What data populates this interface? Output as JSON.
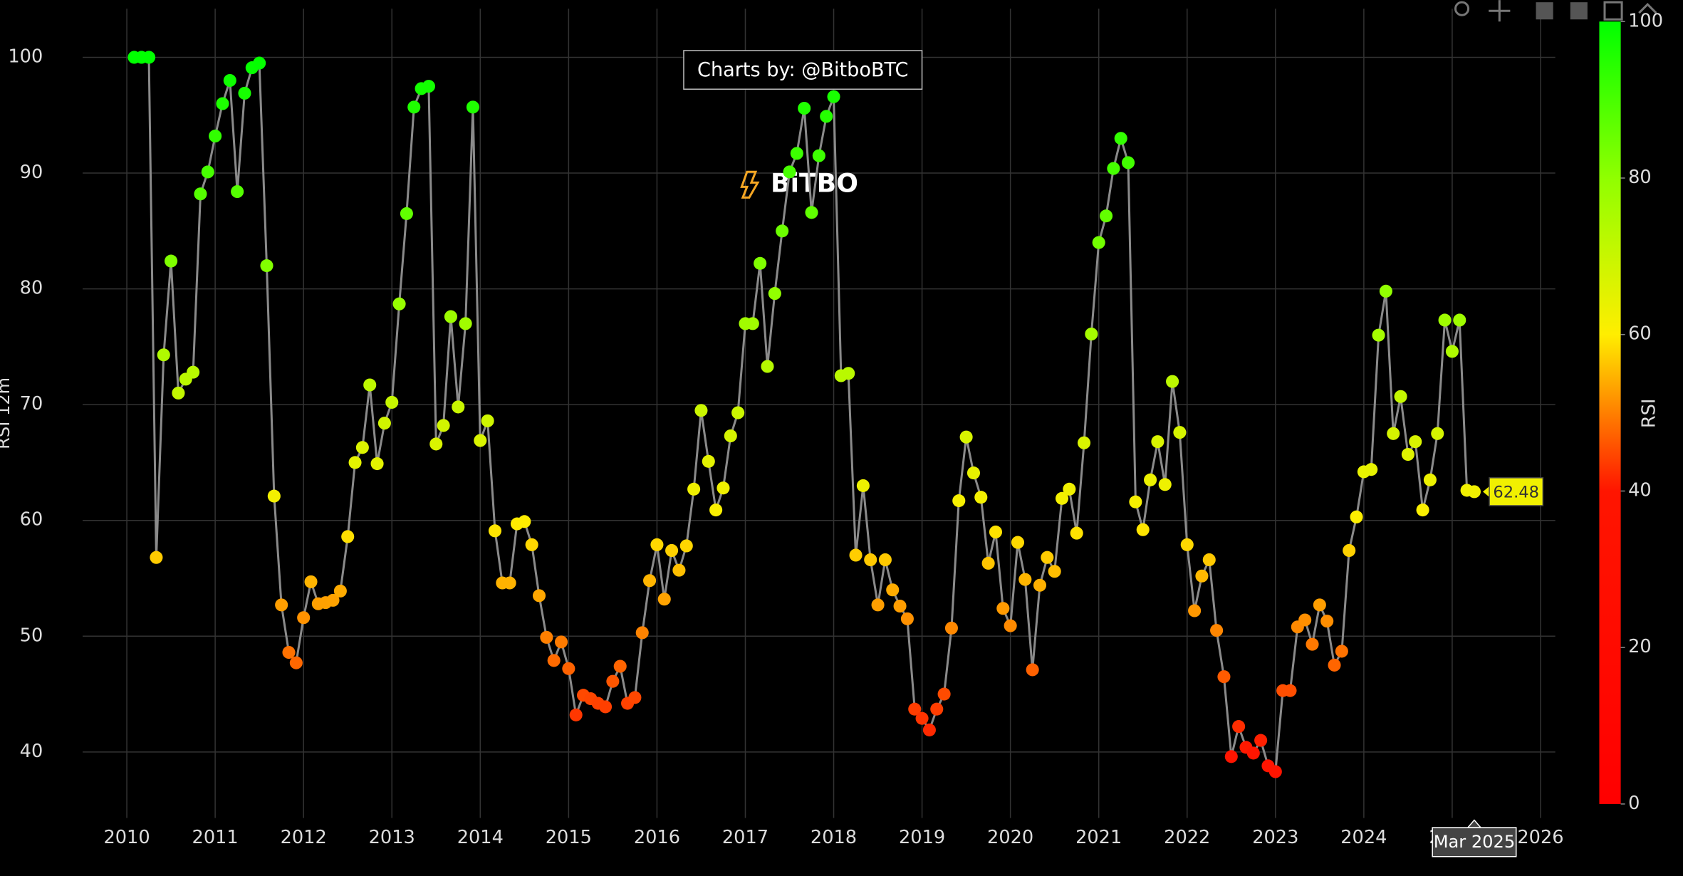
{
  "chart_data": {
    "type": "line",
    "y_label": "RSI 12m",
    "annotation": "Charts by: @BitboBTC",
    "watermark": "BiTBO",
    "x": [
      "2010-01",
      "2010-02",
      "2010-03",
      "2010-04",
      "2010-05",
      "2010-06",
      "2010-07",
      "2010-08",
      "2010-09",
      "2010-10",
      "2010-11",
      "2010-12",
      "2011-01",
      "2011-02",
      "2011-03",
      "2011-04",
      "2011-05",
      "2011-06",
      "2011-07",
      "2011-08",
      "2011-09",
      "2011-10",
      "2011-11",
      "2011-12",
      "2012-01",
      "2012-02",
      "2012-03",
      "2012-04",
      "2012-05",
      "2012-06",
      "2012-07",
      "2012-08",
      "2012-09",
      "2012-10",
      "2012-11",
      "2012-12",
      "2013-01",
      "2013-02",
      "2013-03",
      "2013-04",
      "2013-05",
      "2013-06",
      "2013-07",
      "2013-08",
      "2013-09",
      "2013-10",
      "2013-11",
      "2013-12",
      "2014-01",
      "2014-02",
      "2014-03",
      "2014-04",
      "2014-05",
      "2014-06",
      "2014-07",
      "2014-08",
      "2014-09",
      "2014-10",
      "2014-11",
      "2014-12",
      "2015-01",
      "2015-02",
      "2015-03",
      "2015-04",
      "2015-05",
      "2015-06",
      "2015-07",
      "2015-08",
      "2015-09",
      "2015-10",
      "2015-11",
      "2015-12",
      "2016-01",
      "2016-02",
      "2016-03",
      "2016-04",
      "2016-05",
      "2016-06",
      "2016-07",
      "2016-08",
      "2016-09",
      "2016-10",
      "2016-11",
      "2016-12",
      "2017-01",
      "2017-02",
      "2017-03",
      "2017-04",
      "2017-05",
      "2017-06",
      "2017-07",
      "2017-08",
      "2017-09",
      "2017-10",
      "2017-11",
      "2017-12",
      "2018-01",
      "2018-02",
      "2018-03",
      "2018-04",
      "2018-05",
      "2018-06",
      "2018-07",
      "2018-08",
      "2018-09",
      "2018-10",
      "2018-11",
      "2018-12",
      "2019-01",
      "2019-02",
      "2019-03",
      "2019-04",
      "2019-05",
      "2019-06",
      "2019-07",
      "2019-08",
      "2019-09",
      "2019-10",
      "2019-11",
      "2019-12",
      "2020-01",
      "2020-02",
      "2020-03",
      "2020-04",
      "2020-05",
      "2020-06",
      "2020-07",
      "2020-08",
      "2020-09",
      "2020-10",
      "2020-11",
      "2020-12",
      "2021-01",
      "2021-02",
      "2021-03",
      "2021-04",
      "2021-05",
      "2021-06",
      "2021-07",
      "2021-08",
      "2021-09",
      "2021-10",
      "2021-11",
      "2021-12",
      "2022-01",
      "2022-02",
      "2022-03",
      "2022-04",
      "2022-05",
      "2022-06",
      "2022-07",
      "2022-08",
      "2022-09",
      "2022-10",
      "2022-11",
      "2022-12",
      "2023-01",
      "2023-02",
      "2023-03",
      "2023-04",
      "2023-05",
      "2023-06",
      "2023-07",
      "2023-08",
      "2023-09",
      "2023-10",
      "2023-11",
      "2023-12",
      "2024-01",
      "2024-02",
      "2024-03",
      "2024-04",
      "2024-05",
      "2024-06",
      "2024-07",
      "2024-08",
      "2024-09",
      "2024-10",
      "2024-11",
      "2024-12",
      "2025-01",
      "2025-02",
      "2025-03"
    ],
    "values": [
      100,
      100,
      100,
      56.8,
      74.3,
      82.4,
      71.0,
      72.2,
      72.8,
      88.2,
      90.1,
      93.2,
      96.0,
      98.0,
      88.4,
      96.9,
      99.1,
      99.5,
      82.0,
      62.1,
      52.7,
      48.6,
      47.7,
      51.6,
      54.7,
      52.8,
      52.9,
      53.1,
      53.9,
      58.6,
      65.0,
      66.3,
      71.7,
      64.9,
      68.4,
      70.2,
      78.7,
      86.5,
      95.7,
      97.3,
      97.5,
      66.6,
      68.2,
      77.6,
      69.8,
      77.0,
      95.7,
      66.9,
      68.6,
      59.1,
      54.6,
      54.6,
      59.7,
      59.9,
      57.9,
      53.5,
      49.9,
      47.9,
      49.5,
      47.2,
      43.2,
      44.9,
      44.6,
      44.2,
      43.9,
      46.1,
      47.4,
      44.2,
      44.7,
      50.3,
      54.8,
      57.9,
      53.2,
      57.4,
      55.7,
      57.8,
      62.7,
      69.5,
      65.1,
      60.9,
      62.8,
      67.3,
      69.3,
      77.0,
      77.0,
      82.2,
      73.3,
      79.6,
      85.0,
      90.1,
      91.7,
      95.6,
      86.6,
      91.5,
      94.9,
      96.6,
      72.5,
      72.7,
      57.0,
      63.0,
      56.6,
      52.7,
      56.6,
      54.0,
      52.6,
      51.5,
      43.7,
      42.9,
      41.9,
      43.7,
      45.0,
      50.7,
      61.7,
      67.2,
      64.1,
      62.0,
      56.3,
      59.0,
      52.4,
      50.9,
      58.1,
      54.9,
      47.1,
      54.4,
      56.8,
      55.6,
      61.9,
      62.7,
      58.9,
      66.7,
      76.1,
      84.0,
      86.3,
      90.4,
      93.0,
      90.9,
      61.6,
      59.2,
      63.5,
      66.8,
      63.1,
      72.0,
      67.6,
      57.9,
      52.2,
      55.2,
      56.6,
      50.5,
      46.5,
      39.6,
      42.2,
      40.4,
      39.9,
      41.0,
      38.8,
      38.3,
      45.3,
      45.3,
      50.8,
      51.4,
      49.3,
      52.7,
      51.3,
      47.5,
      48.7,
      57.4,
      60.3,
      64.2,
      64.4,
      76.0,
      79.8,
      67.5,
      70.7,
      65.7,
      66.8,
      60.9,
      63.5,
      67.5,
      77.3,
      74.6,
      77.3,
      62.6,
      62.48
    ],
    "line_color": "#8a8a8a",
    "xlim": [
      "2009-07",
      "2026-03"
    ],
    "xticks": [
      2010,
      2011,
      2012,
      2013,
      2014,
      2015,
      2016,
      2017,
      2018,
      2019,
      2020,
      2021,
      2022,
      2023,
      2024,
      2025,
      2026
    ],
    "ylim": [
      34.3,
      104.2
    ],
    "yticks": [
      40,
      50,
      60,
      70,
      80,
      90,
      100
    ],
    "grid": true,
    "colorbar": {
      "title": "RSI",
      "lim": [
        0,
        100
      ],
      "ticks": [
        0,
        20,
        40,
        60,
        80,
        100
      ]
    },
    "colorscale": [
      [
        0,
        "#ff0000"
      ],
      [
        40,
        "#ff1500"
      ],
      [
        50,
        "#ff8000"
      ],
      [
        60,
        "#ffee00"
      ],
      [
        80,
        "#90ff00"
      ],
      [
        100,
        "#00ff00"
      ]
    ],
    "hover": {
      "x_label": "Mar 2025",
      "index": 182
    }
  }
}
